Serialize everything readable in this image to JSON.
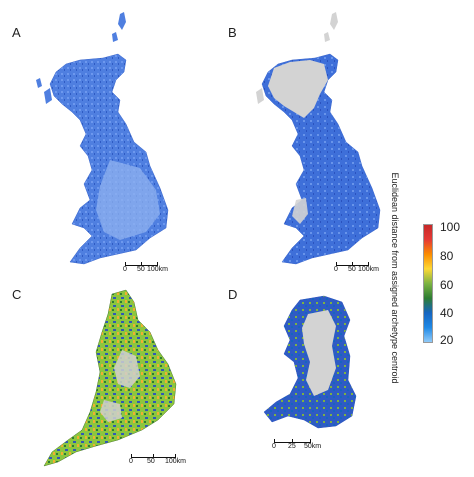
{
  "figure": {
    "panels": [
      {
        "id": "A",
        "label": "A",
        "region": "Great Britain",
        "scale_labels": [
          "0",
          "50",
          "100km"
        ]
      },
      {
        "id": "B",
        "label": "B",
        "region": "Great Britain",
        "scale_labels": [
          "0",
          "50",
          "100km"
        ]
      },
      {
        "id": "C",
        "label": "C",
        "region": "England",
        "scale_labels": [
          "0",
          "50",
          "100km"
        ]
      },
      {
        "id": "D",
        "label": "D",
        "region": "Wales",
        "scale_labels": [
          "0",
          "25",
          "50km"
        ]
      }
    ],
    "legend": {
      "title": "Euclidean distance from assigned archetype centroid",
      "ticks": [
        "100",
        "80",
        "60",
        "40",
        "20"
      ],
      "tick_values": [
        100,
        80,
        60,
        40,
        20
      ],
      "color_ramp": [
        "#c62828",
        "#e53935",
        "#fb8c00",
        "#fdd835",
        "#7cb342",
        "#2e7d32",
        "#1565c0",
        "#1e88e5",
        "#90caf9"
      ]
    },
    "colors": {
      "no_data": "#cfcfcf",
      "low_distance": "#3f6fd8",
      "mid_distance": "#7bbf3a",
      "high_distance": "#f0a020"
    }
  }
}
